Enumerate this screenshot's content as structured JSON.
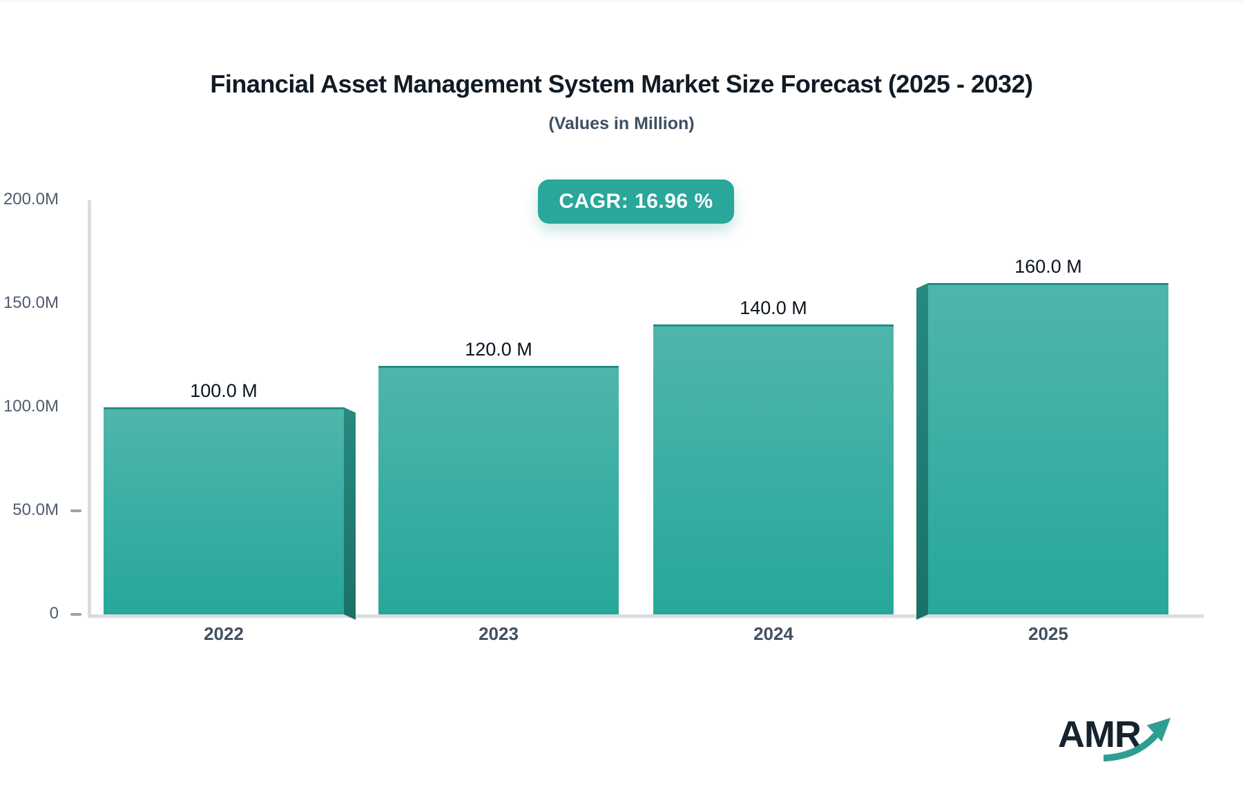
{
  "chart_data": {
    "type": "bar",
    "title": "Financial Asset Management System Market Size Forecast (2025 - 2032)",
    "subtitle": "(Values in Million)",
    "annotation_badge": "CAGR: 16.96 %",
    "categories": [
      "2022",
      "2023",
      "2024",
      "2025"
    ],
    "values": [
      100.0,
      120.0,
      140.0,
      160.0
    ],
    "value_labels": [
      "100.0 M",
      "120.0 M",
      "140.0 M",
      "160.0 M"
    ],
    "xlabel": "",
    "ylabel": "",
    "ylim": [
      0,
      200
    ],
    "yticks": [
      {
        "value": 0,
        "label": "0",
        "dash": true
      },
      {
        "value": 50,
        "label": "50.0M",
        "dash": true
      },
      {
        "value": 100,
        "label": "100.0M",
        "dash": false
      },
      {
        "value": 150,
        "label": "150.0M",
        "dash": false
      },
      {
        "value": 200,
        "label": "200.0M",
        "dash": false
      }
    ],
    "grid": false,
    "legend": false
  },
  "colors": {
    "accent": "#2aa69a",
    "bar_top": "#50b5ab",
    "bar_bottom": "#27a79a",
    "bar_side": "#1f7d73",
    "axis_line": "#d9dce1",
    "tick": "#9aa3ae",
    "title_text": "#101b26",
    "subtitle_text": "#3d4f63",
    "value_text": "#0b131d",
    "axis_text": "#4e5c6d",
    "category_text": "#42505f",
    "logo_text": "#16222e",
    "logo_arrow": "#2d9e92"
  },
  "logo": {
    "text": "AMR"
  }
}
